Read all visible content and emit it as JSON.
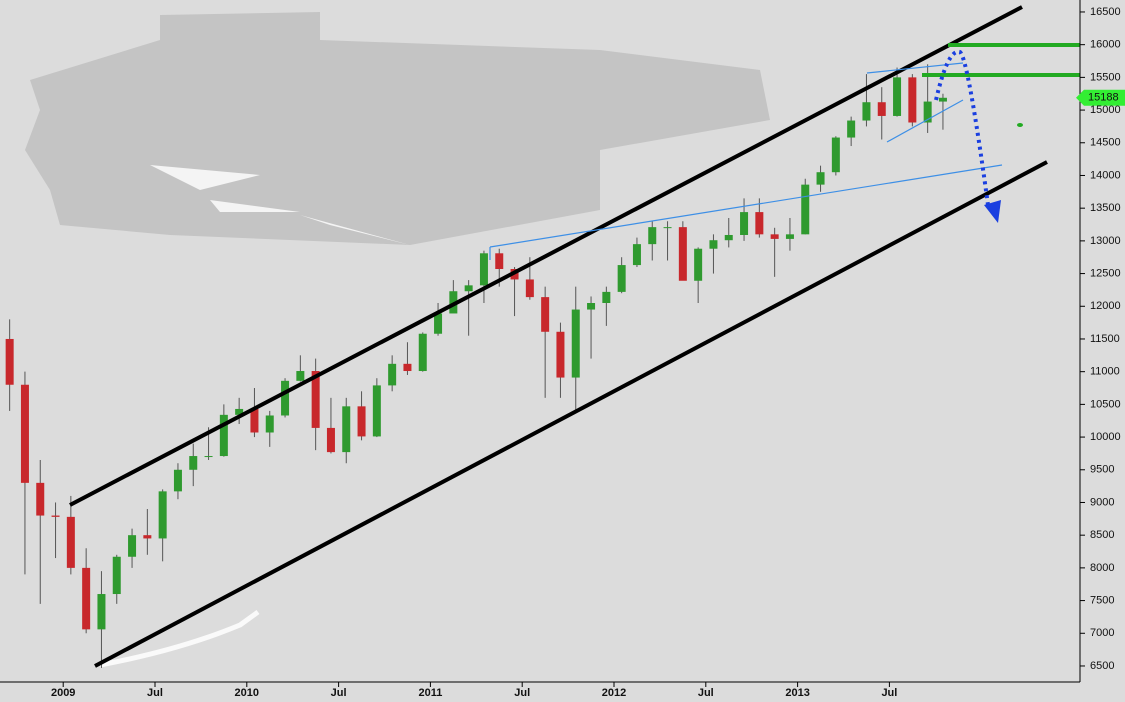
{
  "chart_data": {
    "type": "candlestick",
    "categories": [
      null,
      null,
      null,
      null,
      "2009",
      null,
      null,
      null,
      null,
      null,
      "Jul",
      null,
      null,
      null,
      null,
      null,
      "2010",
      null,
      null,
      null,
      null,
      null,
      "Jul",
      null,
      null,
      null,
      null,
      null,
      "2011",
      null,
      null,
      null,
      null,
      null,
      "Jul",
      null,
      null,
      null,
      null,
      null,
      "2012",
      null,
      null,
      null,
      null,
      null,
      "Jul",
      null,
      null,
      null,
      null,
      null,
      "2013",
      null,
      null,
      null,
      null,
      null,
      "Jul",
      null,
      null,
      null
    ],
    "open": [
      11500,
      10800,
      9300,
      8800,
      8780,
      8000,
      7060,
      7600,
      8170,
      8500,
      8450,
      9170,
      9500,
      9710,
      9710,
      10340,
      10430,
      10070,
      10330,
      10860,
      11010,
      10140,
      9770,
      10470,
      10010,
      10790,
      11120,
      11010,
      11580,
      11890,
      12230,
      12320,
      12810,
      12570,
      12410,
      12140,
      11610,
      10910,
      11950,
      12050,
      12220,
      12630,
      12950,
      13210,
      13210,
      12390,
      12880,
      13010,
      13090,
      13440,
      13100,
      13030,
      13100,
      13860,
      14050,
      14580,
      14840,
      15120,
      14910,
      15500,
      14810,
      15130
    ],
    "high": [
      11800,
      11000,
      9650,
      9000,
      9100,
      8300,
      7950,
      8200,
      8600,
      8900,
      9200,
      9600,
      9900,
      10150,
      10500,
      10600,
      10750,
      10400,
      10900,
      11250,
      11200,
      10600,
      10600,
      10700,
      10900,
      11250,
      11450,
      11600,
      12050,
      12400,
      12400,
      12850,
      12880,
      12600,
      12750,
      12300,
      11750,
      12300,
      12150,
      12300,
      12750,
      13050,
      13300,
      13300,
      13300,
      12900,
      13100,
      13350,
      13650,
      13650,
      13200,
      13350,
      13950,
      14150,
      14600,
      14900,
      15550,
      15350,
      15650,
      15550,
      15700,
      15250
    ],
    "low": [
      10400,
      7900,
      7450,
      8150,
      7900,
      7000,
      6470,
      7450,
      8000,
      8200,
      8100,
      9050,
      9250,
      9650,
      9700,
      10200,
      10000,
      9850,
      10300,
      10850,
      9800,
      9750,
      9600,
      9950,
      10000,
      10700,
      10950,
      11000,
      11550,
      11900,
      11550,
      12050,
      12300,
      11850,
      12100,
      10600,
      10600,
      10400,
      11200,
      11700,
      12200,
      12600,
      12700,
      12700,
      12400,
      12050,
      12500,
      12900,
      13000,
      13050,
      12450,
      12850,
      13100,
      13750,
      14000,
      14450,
      14750,
      14550,
      14900,
      14750,
      14650,
      14700
    ],
    "close": [
      10800,
      9300,
      8800,
      8780,
      8000,
      7060,
      7600,
      8170,
      8500,
      8450,
      9170,
      9500,
      9710,
      9710,
      10340,
      10430,
      10070,
      10330,
      10860,
      11010,
      10140,
      9770,
      10470,
      10010,
      10790,
      11120,
      11010,
      11580,
      11890,
      12230,
      12320,
      12810,
      12570,
      12410,
      12140,
      11610,
      10910,
      11950,
      12050,
      12220,
      12630,
      12950,
      13210,
      13210,
      12390,
      12880,
      13010,
      13090,
      13440,
      13100,
      13030,
      13100,
      13860,
      14050,
      14580,
      14840,
      15120,
      14910,
      15500,
      14810,
      15130,
      15188
    ],
    "up_color": "#2f9a2f",
    "down_color": "#c8282c",
    "wick_color": "#555555",
    "last_price": 15188,
    "ylim": [
      6255,
      16683
    ],
    "yticks": [
      6500,
      7000,
      7500,
      8000,
      8500,
      9000,
      9500,
      10000,
      10500,
      11000,
      11500,
      12000,
      12500,
      13000,
      13500,
      14000,
      14500,
      15000,
      15500,
      16000,
      16500
    ]
  }
}
